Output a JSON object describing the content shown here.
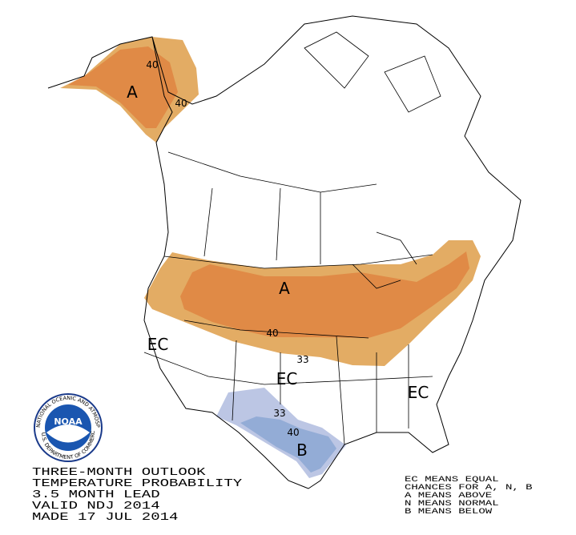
{
  "title_block": {
    "lines": [
      "THREE-MONTH OUTLOOK",
      "TEMPERATURE PROBABILITY",
      "3.5 MONTH LEAD",
      "VALID NDJ 2014",
      "MADE 17 JUL 2014"
    ]
  },
  "legend": {
    "lines": [
      "EC MEANS EQUAL",
      "CHANCES FOR A, N, B",
      "A MEANS ABOVE",
      "N MEANS NORMAL",
      "B MEANS BELOW"
    ]
  },
  "map": {
    "category_labels": [
      "A",
      "A",
      "EC",
      "EC",
      "EC",
      "B"
    ],
    "contour_labels": [
      "40",
      "40",
      "40",
      "33",
      "33",
      "40"
    ]
  },
  "logo": {
    "text": "NOAA",
    "ring_top": "NATIONAL OCEANIC AND ATMOSPHERIC ADMINISTRATION",
    "ring_bottom": "U.S. DEPARTMENT OF COMMERCE"
  }
}
